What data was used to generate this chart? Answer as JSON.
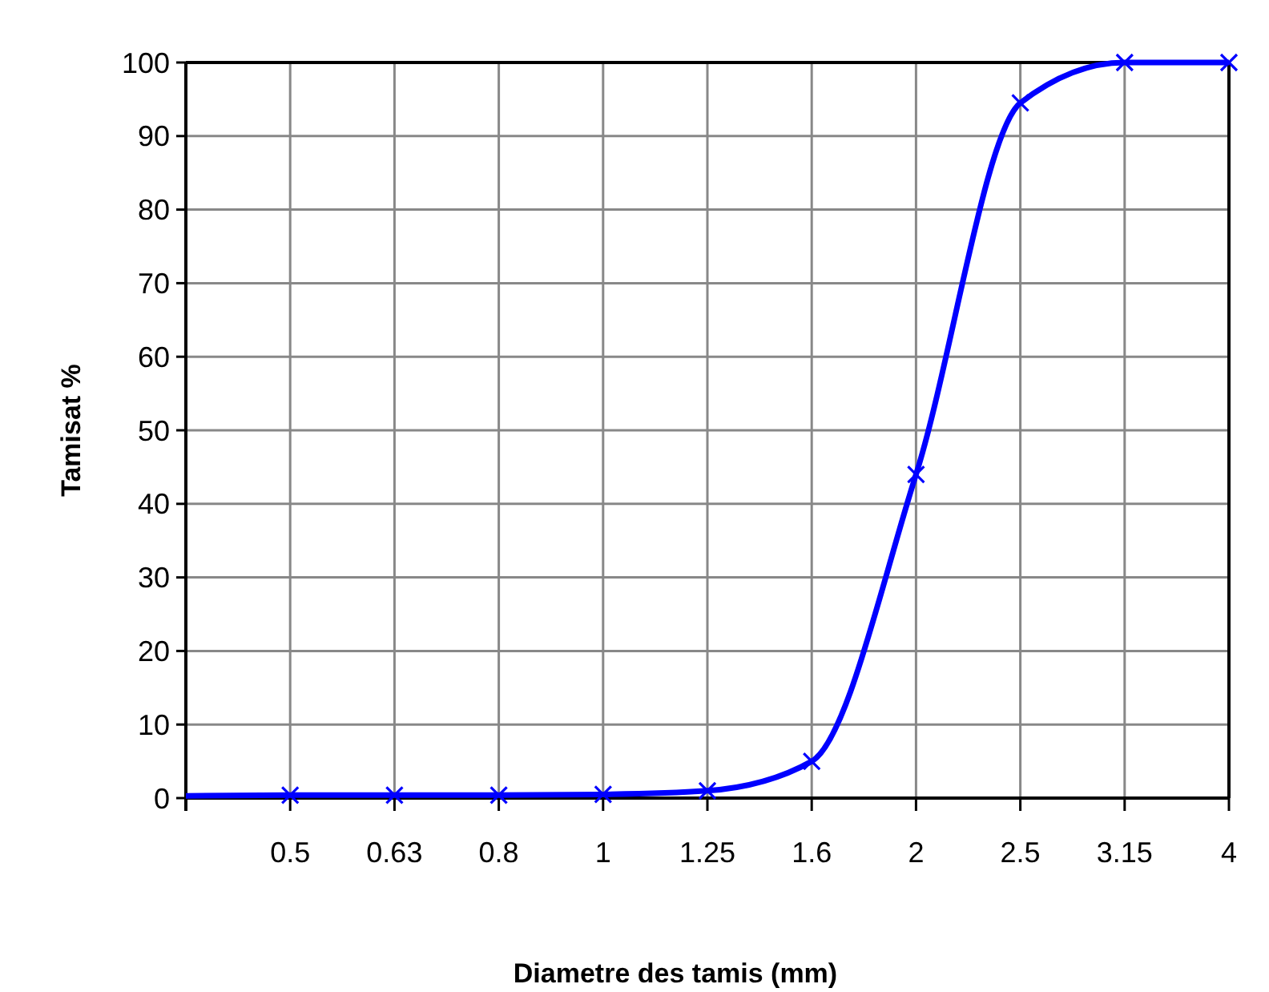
{
  "chart_data": {
    "type": "line",
    "xlabel": "Diametre des tamis (mm)",
    "ylabel": "Tamisat %",
    "categories": [
      null,
      "0.5",
      "0.63",
      "0.8",
      "1",
      "1.25",
      "1.6",
      "2",
      "2.5",
      "3.15",
      "4"
    ],
    "series": [
      {
        "color": "#0000ff",
        "values": [
          0.3,
          0.4,
          0.4,
          0.4,
          0.5,
          1,
          5,
          44,
          94.5,
          100,
          100
        ]
      }
    ],
    "ylim": [
      0,
      100
    ],
    "yticks": [
      0,
      10,
      20,
      30,
      40,
      50,
      60,
      70,
      80,
      90,
      100
    ],
    "grid": true,
    "marker": "cross",
    "line_style": "solid"
  }
}
